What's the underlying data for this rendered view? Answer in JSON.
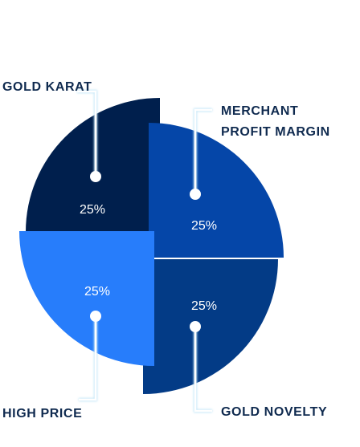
{
  "chart_data": {
    "type": "pie",
    "slices": [
      {
        "label": "GOLD KARAT",
        "label_lines": [
          "GOLD KARAT"
        ],
        "value": 25,
        "value_label": "25%",
        "color": "#001f4d"
      },
      {
        "label": "MERCHANT PROFIT MARGIN",
        "label_lines": [
          "MERCHANT",
          "PROFIT MARGIN"
        ],
        "value": 25,
        "value_label": "25%",
        "color": "#0546a8"
      },
      {
        "label": "GOLD NOVELTY",
        "label_lines": [
          "GOLD NOVELTY"
        ],
        "value": 25,
        "value_label": "25%",
        "color": "#033b86"
      },
      {
        "label": "HIGH PRICE",
        "label_lines": [
          "HIGH PRICE"
        ],
        "value": 25,
        "value_label": "25%",
        "color": "#277dfb"
      }
    ],
    "label_color": "#0f2a4f",
    "leader_line_color": "#ffffff",
    "leader_shadow_color": "#bfe4f7"
  }
}
